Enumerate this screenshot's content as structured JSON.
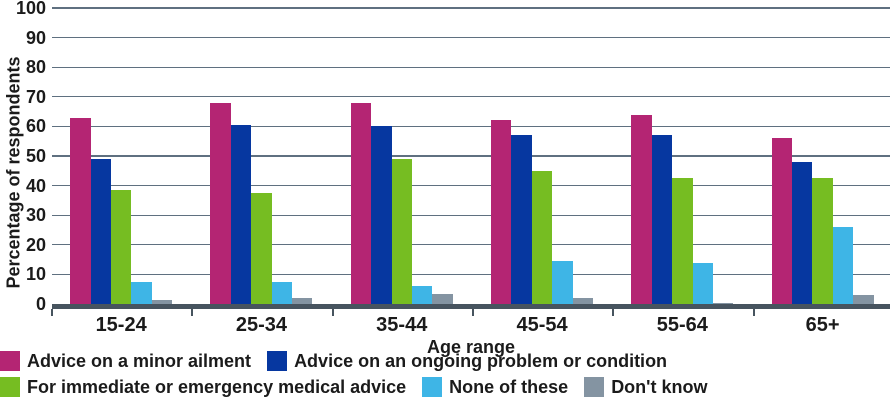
{
  "chart_data": {
    "type": "bar",
    "title": "",
    "xlabel": "Age range",
    "ylabel": "Percentage of respondents",
    "ylim": [
      0,
      100
    ],
    "ytick_step": 10,
    "grid": true,
    "legend_position": "bottom",
    "categories": [
      "15-24",
      "25-34",
      "35-44",
      "45-54",
      "55-64",
      "65+"
    ],
    "series": [
      {
        "name": "Advice on a minor ailment",
        "color": "#b42573",
        "values": [
          63,
          68,
          68,
          62,
          64,
          56
        ]
      },
      {
        "name": "Advice on an ongoing problem or condition",
        "color": "#0637a0",
        "values": [
          49,
          60.5,
          60,
          57,
          57,
          48
        ]
      },
      {
        "name": "For immediate or emergency medical advice",
        "color": "#76bd22",
        "values": [
          38.5,
          37.5,
          49,
          45,
          42.5,
          42.5
        ]
      },
      {
        "name": "None of these",
        "color": "#3eb5e6",
        "values": [
          7.5,
          7.5,
          6,
          14.5,
          14,
          26
        ]
      },
      {
        "name": "Don't know",
        "color": "#8494a2",
        "values": [
          1.5,
          2,
          3.5,
          2,
          0.5,
          3
        ]
      }
    ],
    "legend_rows": [
      [
        0,
        1
      ],
      [
        2,
        3,
        4
      ]
    ]
  },
  "colors": {
    "axis": "#47545f",
    "grid": "#5f7080",
    "text": "#1b1b1b",
    "background": "#ffffff"
  }
}
